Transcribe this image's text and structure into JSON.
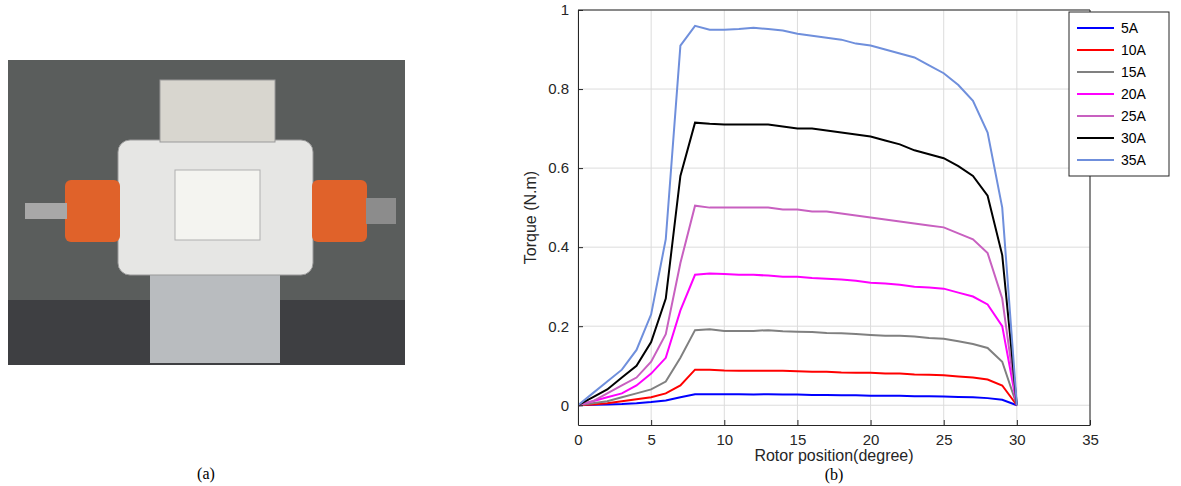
{
  "panel_labels": [
    "(a)",
    "(b)"
  ],
  "chart_data": {
    "type": "line",
    "x_label": "Rotor position(degree)",
    "y_label": "Torque (N.m)",
    "x": [
      0,
      1,
      2,
      3,
      4,
      5,
      6,
      7,
      8,
      9,
      10,
      11,
      12,
      13,
      14,
      15,
      16,
      17,
      18,
      19,
      20,
      21,
      22,
      23,
      24,
      25,
      26,
      27,
      28,
      29,
      30
    ],
    "xlim": [
      0,
      35
    ],
    "xticks": [
      0,
      5,
      10,
      15,
      20,
      25,
      30,
      35
    ],
    "ylim": [
      -0.05,
      1
    ],
    "yticks": [
      0,
      0.2,
      0.4,
      0.6,
      0.8,
      1
    ],
    "grid": true,
    "legend": "northeast",
    "series": [
      {
        "name": "5A",
        "color": "#0000ff",
        "values": [
          0,
          0.001,
          0.002,
          0.003,
          0.005,
          0.008,
          0.012,
          0.02,
          0.028,
          0.028,
          0.028,
          0.028,
          0.027,
          0.028,
          0.027,
          0.027,
          0.026,
          0.026,
          0.025,
          0.025,
          0.024,
          0.024,
          0.024,
          0.023,
          0.023,
          0.022,
          0.021,
          0.02,
          0.018,
          0.014,
          0
        ]
      },
      {
        "name": "10A",
        "color": "#ff0000",
        "values": [
          0,
          0.002,
          0.005,
          0.01,
          0.015,
          0.02,
          0.03,
          0.05,
          0.09,
          0.09,
          0.088,
          0.087,
          0.087,
          0.087,
          0.087,
          0.086,
          0.085,
          0.085,
          0.083,
          0.082,
          0.082,
          0.08,
          0.08,
          0.078,
          0.077,
          0.076,
          0.073,
          0.07,
          0.065,
          0.05,
          0
        ]
      },
      {
        "name": "15A",
        "color": "#808080",
        "values": [
          0,
          0.005,
          0.01,
          0.02,
          0.03,
          0.04,
          0.06,
          0.12,
          0.19,
          0.192,
          0.188,
          0.188,
          0.188,
          0.19,
          0.187,
          0.186,
          0.185,
          0.183,
          0.182,
          0.18,
          0.178,
          0.176,
          0.176,
          0.174,
          0.17,
          0.168,
          0.162,
          0.155,
          0.145,
          0.11,
          0
        ]
      },
      {
        "name": "20A",
        "color": "#ff00ff",
        "values": [
          0,
          0.01,
          0.02,
          0.03,
          0.05,
          0.08,
          0.12,
          0.24,
          0.33,
          0.333,
          0.332,
          0.33,
          0.33,
          0.328,
          0.325,
          0.325,
          0.322,
          0.32,
          0.318,
          0.315,
          0.31,
          0.308,
          0.305,
          0.3,
          0.298,
          0.295,
          0.285,
          0.275,
          0.255,
          0.2,
          0
        ]
      },
      {
        "name": "25A",
        "color": "#c860c0",
        "values": [
          0,
          0.01,
          0.03,
          0.05,
          0.07,
          0.11,
          0.18,
          0.36,
          0.505,
          0.5,
          0.5,
          0.5,
          0.5,
          0.5,
          0.495,
          0.495,
          0.49,
          0.49,
          0.485,
          0.48,
          0.475,
          0.47,
          0.465,
          0.46,
          0.455,
          0.45,
          0.435,
          0.42,
          0.385,
          0.27,
          0
        ]
      },
      {
        "name": "30A",
        "color": "#000000",
        "values": [
          0,
          0.02,
          0.04,
          0.07,
          0.1,
          0.16,
          0.27,
          0.58,
          0.715,
          0.712,
          0.71,
          0.71,
          0.71,
          0.71,
          0.705,
          0.7,
          0.7,
          0.695,
          0.69,
          0.685,
          0.68,
          0.67,
          0.66,
          0.645,
          0.635,
          0.625,
          0.605,
          0.58,
          0.53,
          0.38,
          0
        ]
      },
      {
        "name": "35A",
        "color": "#6f8fdc",
        "values": [
          0,
          0.03,
          0.06,
          0.09,
          0.14,
          0.23,
          0.42,
          0.91,
          0.96,
          0.95,
          0.95,
          0.952,
          0.955,
          0.952,
          0.948,
          0.94,
          0.935,
          0.93,
          0.925,
          0.915,
          0.91,
          0.9,
          0.89,
          0.88,
          0.86,
          0.84,
          0.81,
          0.77,
          0.69,
          0.5,
          0
        ]
      }
    ]
  }
}
